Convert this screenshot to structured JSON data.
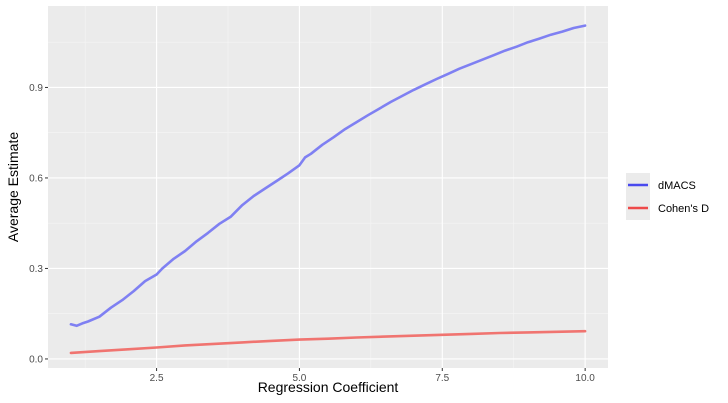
{
  "chart_data": {
    "type": "line",
    "title": "",
    "xlabel": "Regression Coefficient",
    "ylabel": "Average Estimate",
    "xlim": [
      0.6,
      10.4
    ],
    "ylim": [
      -0.03,
      1.17
    ],
    "x_ticks": [
      2.5,
      5.0,
      7.5,
      10.0
    ],
    "x_tick_labels": [
      "2.5",
      "5.0",
      "7.5",
      "10.0"
    ],
    "y_ticks": [
      0.0,
      0.3,
      0.6,
      0.9
    ],
    "y_tick_labels": [
      "0.0",
      "0.3",
      "0.6",
      "0.9"
    ],
    "grid": true,
    "legend_position": "right",
    "background": "#ebebeb",
    "series": [
      {
        "name": "dMACS",
        "color": "#7f80f2",
        "legend_color": "#4a4aee",
        "x": [
          1.0,
          1.1,
          1.2,
          1.3,
          1.5,
          1.7,
          1.9,
          2.1,
          2.3,
          2.5,
          2.6,
          2.8,
          3.0,
          3.2,
          3.4,
          3.6,
          3.8,
          4.0,
          4.2,
          4.4,
          4.6,
          4.8,
          5.0,
          5.1,
          5.2,
          5.4,
          5.6,
          5.8,
          6.0,
          6.2,
          6.4,
          6.6,
          6.8,
          7.0,
          7.2,
          7.4,
          7.6,
          7.8,
          8.0,
          8.2,
          8.4,
          8.6,
          8.8,
          9.0,
          9.2,
          9.4,
          9.6,
          9.8,
          10.0
        ],
        "y": [
          0.115,
          0.11,
          0.118,
          0.124,
          0.14,
          0.17,
          0.195,
          0.225,
          0.258,
          0.28,
          0.3,
          0.332,
          0.358,
          0.39,
          0.418,
          0.448,
          0.472,
          0.51,
          0.54,
          0.565,
          0.59,
          0.615,
          0.642,
          0.668,
          0.68,
          0.71,
          0.735,
          0.762,
          0.785,
          0.808,
          0.83,
          0.852,
          0.872,
          0.892,
          0.91,
          0.928,
          0.945,
          0.962,
          0.977,
          0.992,
          1.007,
          1.022,
          1.035,
          1.05,
          1.062,
          1.075,
          1.085,
          1.097,
          1.105
        ]
      },
      {
        "name": "Cohen's D",
        "color": "#f07470",
        "legend_color": "#ee4a4a",
        "x": [
          1.0,
          1.5,
          2.0,
          2.5,
          3.0,
          3.5,
          4.0,
          4.5,
          5.0,
          5.5,
          6.0,
          6.5,
          7.0,
          7.5,
          8.0,
          8.5,
          9.0,
          9.5,
          10.0
        ],
        "y": [
          0.02,
          0.026,
          0.032,
          0.038,
          0.045,
          0.05,
          0.055,
          0.06,
          0.064,
          0.067,
          0.071,
          0.074,
          0.077,
          0.08,
          0.083,
          0.086,
          0.088,
          0.09,
          0.092
        ]
      }
    ]
  }
}
